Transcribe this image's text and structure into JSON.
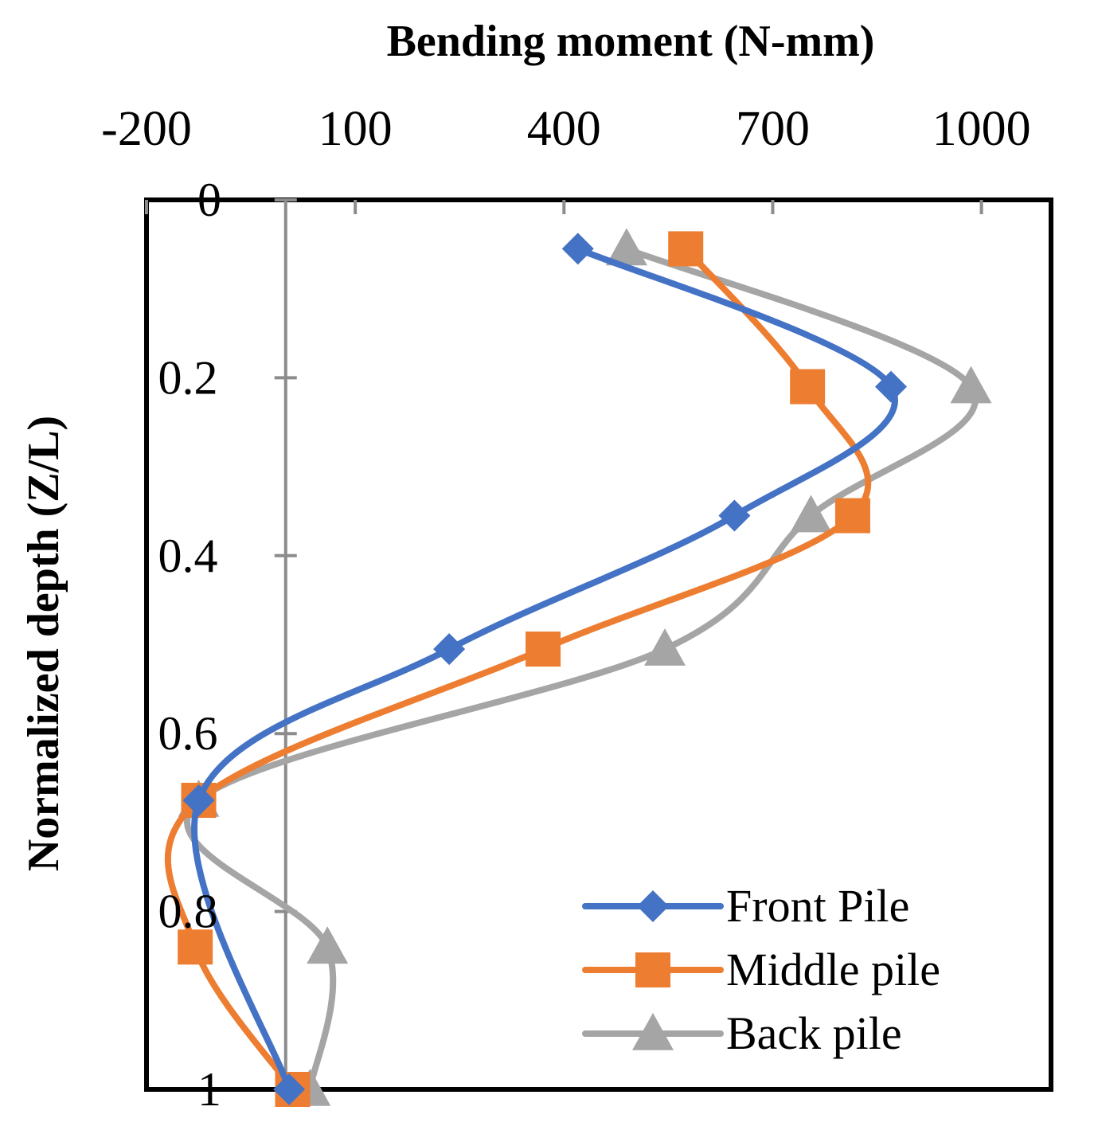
{
  "chart_data": {
    "type": "scatter",
    "xlabel": "Bending moment (N-mm)",
    "ylabel": "Normalized depth (Z/L)",
    "xlim": [
      -200,
      1100
    ],
    "ylim": [
      0,
      1
    ],
    "y_inverted": true,
    "x_axis_position": "top",
    "x_ticks": [
      "-200",
      "100",
      "400",
      "700",
      "1000"
    ],
    "y_ticks": [
      "0",
      "0.2",
      "0.4",
      "0.6",
      "0.8",
      "1"
    ],
    "grid": false,
    "legend_position": "bottom-right",
    "series": [
      {
        "name": "Front Pile",
        "color": "#4472C4",
        "marker": "diamond",
        "x": [
          420,
          870,
          645,
          235,
          -125,
          5
        ],
        "y": [
          0.055,
          0.21,
          0.355,
          0.505,
          0.675,
          1.0
        ]
      },
      {
        "name": "Middle pile",
        "color": "#ED7D31",
        "marker": "square",
        "x": [
          575,
          750,
          815,
          370,
          -125,
          -130,
          10
        ],
        "y": [
          0.055,
          0.21,
          0.355,
          0.505,
          0.675,
          0.84,
          1.0
        ]
      },
      {
        "name": "Back pile",
        "color": "#A5A5A5",
        "marker": "triangle",
        "x": [
          490,
          985,
          755,
          545,
          -125,
          60,
          35
        ],
        "y": [
          0.055,
          0.21,
          0.355,
          0.505,
          0.675,
          0.84,
          1.0
        ]
      }
    ]
  }
}
